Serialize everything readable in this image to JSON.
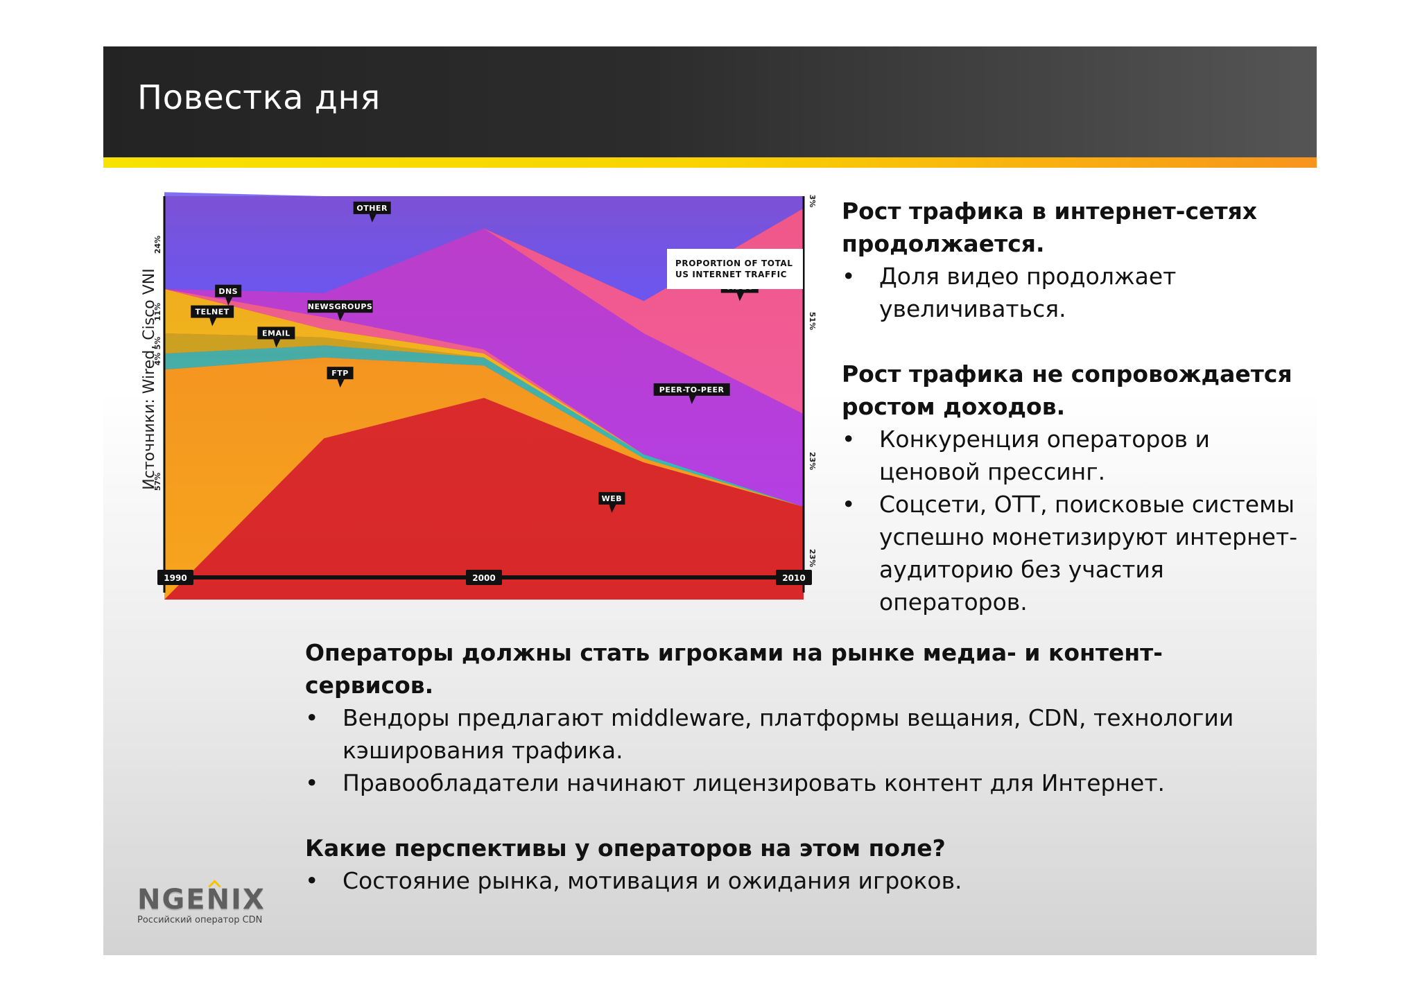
{
  "slide": {
    "title": "Повестка дня",
    "source_caption": "Источники: Wired, Cisco VNI"
  },
  "chart_data": {
    "type": "area",
    "title": "PROPORTION OF TOTAL US INTERNET TRAFFIC",
    "title_lines": [
      "PROPORTION OF TOTAL",
      "US INTERNET TRAFFIC"
    ],
    "x": [
      1990,
      1995,
      2000,
      2005,
      2010
    ],
    "x_tick_labels": [
      "1990",
      "2000",
      "2010"
    ],
    "stacking": "100-percent",
    "series": [
      {
        "name": "WEB",
        "color": "#d8282a",
        "values": [
          0,
          40,
          50,
          34,
          23
        ]
      },
      {
        "name": "FTP",
        "color": "#f7a51d",
        "values": [
          57,
          20,
          8,
          1,
          0
        ]
      },
      {
        "name": "EMAIL",
        "color": "#2fbfb8",
        "values": [
          4,
          3,
          2,
          1,
          0
        ]
      },
      {
        "name": "TELNET",
        "color": "#c9b11e",
        "values": [
          5,
          2,
          0,
          0,
          0
        ]
      },
      {
        "name": "DNS",
        "color": "#f2c21a",
        "values": [
          11,
          2,
          1,
          0,
          0
        ]
      },
      {
        "name": "NEWSGROUPS",
        "color": "#f06497",
        "values": [
          0,
          3,
          1,
          0,
          0
        ]
      },
      {
        "name": "PEER-TO-PEER",
        "color": "#b43fe3",
        "values": [
          0,
          6,
          30,
          30,
          23
        ]
      },
      {
        "name": "VIDEO",
        "color": "#f25d98",
        "values": [
          0,
          0,
          0,
          8,
          51
        ]
      },
      {
        "name": "OTHER",
        "color": "#6b56f0",
        "values": [
          24,
          24,
          8,
          26,
          3
        ]
      }
    ],
    "left_percent_labels": [
      "57%",
      "4%",
      "5%",
      "11%",
      "24%"
    ],
    "right_percent_labels": [
      "23%",
      "23%",
      "51%",
      "3%"
    ],
    "ylim": [
      0,
      100
    ],
    "legend": "inline-callouts"
  },
  "right": {
    "heading1": "Рост трафика в интернет-сетях продолжается.",
    "bullets1": [
      "Доля видео продолжает увеличиваться."
    ],
    "heading2": "Рост трафика не сопровождается ростом доходов.",
    "bullets2": [
      "Конкуренция операторов и ценовой прессинг.",
      "Соцсети, ОТТ, поисковые системы успешно монетизируют интернет-аудиторию без участия операторов."
    ]
  },
  "bottom": {
    "heading1": "Операторы должны стать игроками на рынке медиа- и контент-сервисов.",
    "bullets1": [
      "Вендоры предлагают middleware, платформы вещания, CDN, технологии кэширования трафика.",
      "Правообладатели начинают лицензировать контент для Интернет."
    ],
    "heading2": "Какие перспективы у операторов на этом поле?",
    "bullets2": [
      "Состояние рынка, мотивация и ожидания игроков."
    ]
  },
  "bullet_char": "•",
  "logo": {
    "wordmark": "NGENIX",
    "tagline": "Российский оператор CDN"
  }
}
